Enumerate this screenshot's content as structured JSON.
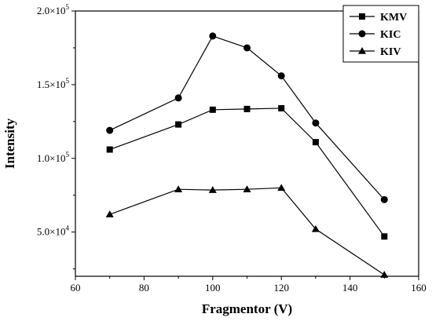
{
  "chart_data": {
    "type": "line",
    "xlabel": "Fragmentor (V)",
    "ylabel": "Intensity",
    "xlim": [
      60,
      160
    ],
    "ylim": [
      20000,
      200000
    ],
    "x_ticks": [
      60,
      80,
      100,
      120,
      140,
      160
    ],
    "y_ticks": [
      {
        "value": 50000,
        "mantissa": "5.0×10",
        "exp": "4"
      },
      {
        "value": 100000,
        "mantissa": "1.0×10",
        "exp": "5"
      },
      {
        "value": 150000,
        "mantissa": "1.5×10",
        "exp": "5"
      },
      {
        "value": 200000,
        "mantissa": "2.0×10",
        "exp": "5"
      }
    ],
    "grid": false,
    "legend_position": "top-right",
    "series": [
      {
        "name": "KMV",
        "marker": "square",
        "x": [
          70,
          90,
          100,
          110,
          120,
          130,
          150
        ],
        "y": [
          106000,
          123000,
          133000,
          133500,
          134000,
          111000,
          47000
        ]
      },
      {
        "name": "KIC",
        "marker": "circle",
        "x": [
          70,
          90,
          100,
          110,
          120,
          130,
          150
        ],
        "y": [
          119000,
          141000,
          183000,
          175000,
          156000,
          124000,
          72000
        ]
      },
      {
        "name": "KIV",
        "marker": "triangle",
        "x": [
          70,
          90,
          100,
          110,
          120,
          130,
          150
        ],
        "y": [
          62000,
          79000,
          78500,
          79000,
          80000,
          52000,
          21000
        ]
      }
    ]
  }
}
